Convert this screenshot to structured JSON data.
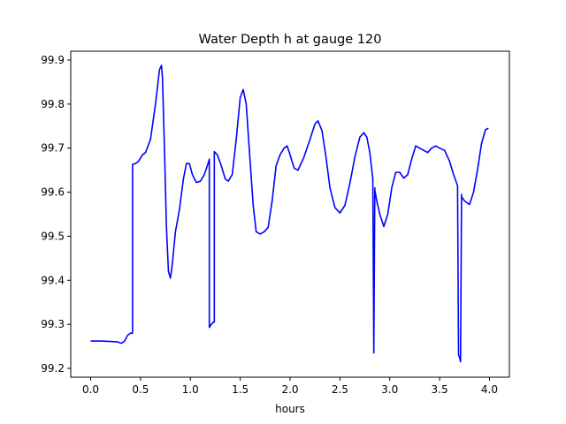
{
  "chart_data": {
    "type": "line",
    "title": "Water Depth h at gauge 120",
    "xlabel": "hours",
    "ylabel": "",
    "xlim": [
      -0.2,
      4.2
    ],
    "ylim": [
      99.18,
      99.92
    ],
    "xticks": [
      0.0,
      0.5,
      1.0,
      1.5,
      2.0,
      2.5,
      3.0,
      3.5,
      4.0
    ],
    "xtick_labels": [
      "0.0",
      "0.5",
      "1.0",
      "1.5",
      "2.0",
      "2.5",
      "3.0",
      "3.5",
      "4.0"
    ],
    "yticks": [
      99.2,
      99.3,
      99.4,
      99.5,
      99.6,
      99.7,
      99.8,
      99.9
    ],
    "ytick_labels": [
      "99.2",
      "99.3",
      "99.4",
      "99.5",
      "99.6",
      "99.7",
      "99.8",
      "99.9"
    ],
    "grid": false,
    "color": "#0000ff",
    "series": [
      {
        "x": [
          0.0,
          0.1,
          0.2,
          0.27,
          0.31,
          0.34,
          0.37,
          0.4,
          0.42,
          0.42,
          0.45,
          0.48,
          0.52,
          0.55,
          0.6,
          0.65,
          0.69,
          0.71,
          0.72,
          0.74,
          0.76,
          0.78,
          0.8,
          0.82,
          0.85,
          0.89,
          0.93,
          0.96,
          0.99,
          1.02,
          1.06,
          1.1,
          1.14,
          1.17,
          1.19,
          1.19,
          1.21,
          1.23,
          1.24,
          1.24,
          1.27,
          1.31,
          1.35,
          1.38,
          1.42,
          1.46,
          1.5,
          1.53,
          1.56,
          1.59,
          1.63,
          1.66,
          1.7,
          1.74,
          1.78,
          1.82,
          1.86,
          1.9,
          1.94,
          1.97,
          2.0,
          2.04,
          2.08,
          2.14,
          2.2,
          2.25,
          2.28,
          2.32,
          2.36,
          2.4,
          2.45,
          2.5,
          2.55,
          2.6,
          2.65,
          2.7,
          2.74,
          2.77,
          2.8,
          2.82,
          2.83,
          2.84,
          2.85,
          2.85,
          2.87,
          2.9,
          2.94,
          2.98,
          3.02,
          3.06,
          3.1,
          3.14,
          3.18,
          3.22,
          3.26,
          3.3,
          3.34,
          3.38,
          3.42,
          3.46,
          3.5,
          3.55,
          3.6,
          3.64,
          3.68,
          3.69,
          3.7,
          3.71,
          3.72,
          3.72,
          3.75,
          3.78,
          3.8,
          3.84,
          3.88,
          3.92,
          3.96,
          3.99
        ],
        "y": [
          99.262,
          99.262,
          99.261,
          99.26,
          99.257,
          99.262,
          99.275,
          99.28,
          99.28,
          99.663,
          99.665,
          99.67,
          99.685,
          99.69,
          99.72,
          99.8,
          99.878,
          99.888,
          99.86,
          99.7,
          99.52,
          99.42,
          99.405,
          99.44,
          99.51,
          99.56,
          99.63,
          99.665,
          99.665,
          99.64,
          99.622,
          99.625,
          99.64,
          99.66,
          99.675,
          99.293,
          99.3,
          99.305,
          99.305,
          99.692,
          99.685,
          99.66,
          99.63,
          99.625,
          99.64,
          99.72,
          99.815,
          99.833,
          99.8,
          99.7,
          99.57,
          99.51,
          99.505,
          99.51,
          99.52,
          99.58,
          99.66,
          99.685,
          99.7,
          99.705,
          99.685,
          99.655,
          99.65,
          99.68,
          99.72,
          99.755,
          99.762,
          99.74,
          99.68,
          99.61,
          99.565,
          99.553,
          99.57,
          99.62,
          99.68,
          99.725,
          99.735,
          99.725,
          99.69,
          99.65,
          99.63,
          99.235,
          99.61,
          99.605,
          99.58,
          99.55,
          99.522,
          99.55,
          99.61,
          99.645,
          99.645,
          99.632,
          99.64,
          99.675,
          99.705,
          99.7,
          99.695,
          99.69,
          99.7,
          99.705,
          99.7,
          99.695,
          99.67,
          99.64,
          99.615,
          99.23,
          99.225,
          99.215,
          99.595,
          99.59,
          99.58,
          99.575,
          99.572,
          99.6,
          99.65,
          99.71,
          99.742,
          99.745
        ]
      }
    ]
  }
}
